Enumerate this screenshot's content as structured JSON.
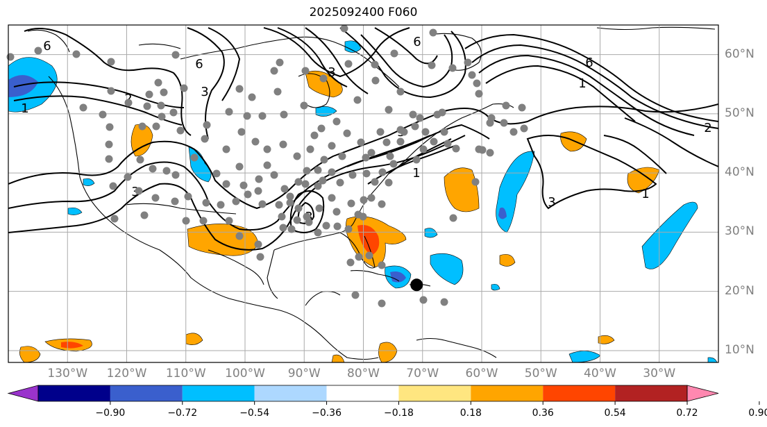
{
  "title": "2025092400 F060",
  "map": {
    "projection": "plate-carree",
    "lon_range": [
      -140,
      -20
    ],
    "lat_range": [
      8,
      65
    ],
    "lat_labels": [
      "60°N",
      "50°N",
      "40°N",
      "30°N",
      "20°N",
      "10°N"
    ],
    "lat_values": [
      60,
      50,
      40,
      30,
      20,
      10
    ],
    "lon_labels": [
      "130°W",
      "120°W",
      "110°W",
      "100°W",
      "90°W",
      "80°W",
      "70°W",
      "60°W",
      "50°W",
      "40°W",
      "30°W"
    ],
    "lon_values": [
      -130,
      -120,
      -110,
      -100,
      -90,
      -80,
      -70,
      -60,
      -50,
      -40,
      -30
    ],
    "grid": true,
    "contour_labels": [
      "6",
      "6",
      "6",
      "6",
      "3",
      "3",
      "3",
      "3",
      "3",
      "3",
      "1",
      "1",
      "1",
      "1",
      "2",
      "2"
    ],
    "storm_marker": {
      "lon": -71,
      "lat": 21.1,
      "color": "#000000"
    },
    "station_dot_color": "#808080"
  },
  "colorbar": {
    "tick_labels": [
      "−0.90",
      "−0.72",
      "−0.54",
      "−0.36",
      "−0.18",
      "0.18",
      "0.36",
      "0.54",
      "0.72",
      "0.90"
    ],
    "colors": [
      "#9933cc",
      "#00008b",
      "#3a5fcd",
      "#00bfff",
      "#add8ff",
      "#ffffff",
      "#ffe680",
      "#ffa500",
      "#ff4500",
      "#b22222",
      "#ff88b0"
    ],
    "extend": "both"
  }
}
